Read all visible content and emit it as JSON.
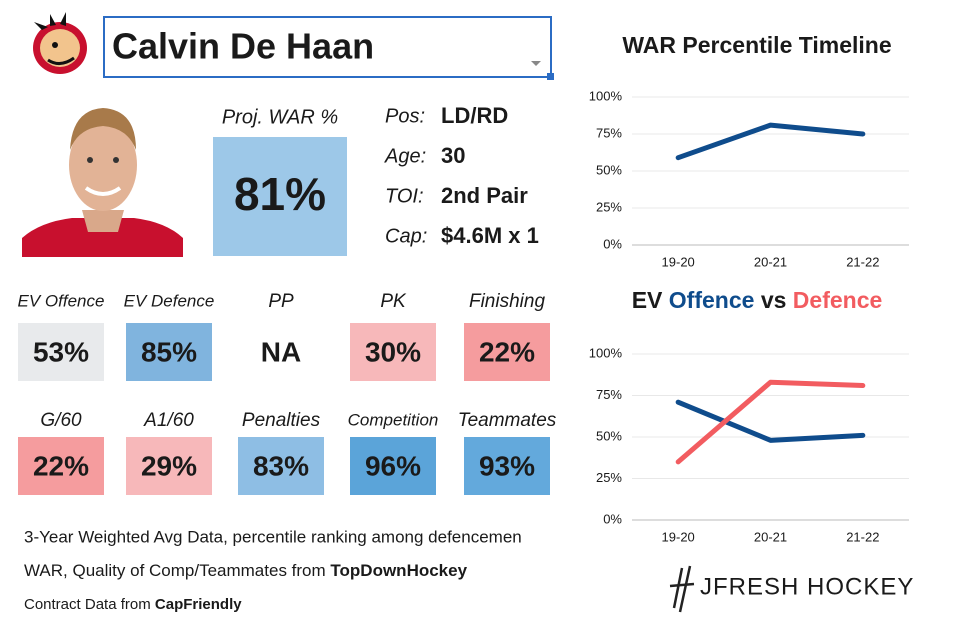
{
  "header": {
    "player_name": "Calvin De Haan"
  },
  "projection": {
    "label": "Proj. WAR %",
    "value": "81%",
    "color": "#9dc8e8"
  },
  "info": [
    {
      "label": "Pos:",
      "value": "LD/RD"
    },
    {
      "label": "Age:",
      "value": "30"
    },
    {
      "label": "TOI:",
      "value": "2nd Pair"
    },
    {
      "label": "Cap:",
      "value": "$4.6M x 1"
    }
  ],
  "metrics": [
    [
      {
        "label": "EV Offence",
        "value": "53%",
        "color": "#e8eaec"
      },
      {
        "label": "EV Defence",
        "value": "85%",
        "color": "#80b4de"
      },
      {
        "label": "PP",
        "value": "NA",
        "color": "#ffffff"
      },
      {
        "label": "PK",
        "value": "30%",
        "color": "#f7b8ba"
      },
      {
        "label": "Finishing",
        "value": "22%",
        "color": "#f59c9e"
      }
    ],
    [
      {
        "label": "G/60",
        "value": "22%",
        "color": "#f59c9e"
      },
      {
        "label": "A1/60",
        "value": "29%",
        "color": "#f7b8ba"
      },
      {
        "label": "Penalties",
        "value": "83%",
        "color": "#8ebee4"
      },
      {
        "label": "Competition",
        "value": "96%",
        "color": "#5ba4d9"
      },
      {
        "label": "Teammates",
        "value": "93%",
        "color": "#63a9dc"
      }
    ]
  ],
  "footer": {
    "note": "3-Year Weighted Avg Data, percentile ranking among defencemen",
    "sources": [
      {
        "text": "WAR, Quality of Comp/Teammates from",
        "source": "TopDownHockey"
      },
      {
        "text": "Contract Data from",
        "source": "CapFriendly"
      }
    ],
    "brand": "JFRESH HOCKEY"
  },
  "chart_data": [
    {
      "type": "line",
      "title": "WAR Percentile Timeline",
      "categories": [
        "19-20",
        "20-21",
        "21-22"
      ],
      "values": [
        59,
        81,
        75
      ],
      "color": "#0f4c8c",
      "ylim": [
        0,
        100
      ],
      "yticks": [
        {
          "value": 0,
          "label": "0%"
        },
        {
          "value": 25,
          "label": "25%"
        },
        {
          "value": 50,
          "label": "50%"
        },
        {
          "value": 75,
          "label": "75%"
        },
        {
          "value": 100,
          "label": "100%"
        }
      ],
      "grid": true
    },
    {
      "type": "line",
      "title_prefix": "EV",
      "title_joiner": "vs",
      "categories": [
        "19-20",
        "20-21",
        "21-22"
      ],
      "series": [
        {
          "name": "Offence",
          "color": "#0f4c8c",
          "values": [
            71,
            48,
            51
          ]
        },
        {
          "name": "Defence",
          "color": "#f25c60",
          "values": [
            35,
            83,
            81
          ]
        }
      ],
      "ylim": [
        0,
        100
      ],
      "yticks": [
        {
          "value": 0,
          "label": "0%"
        },
        {
          "value": 25,
          "label": "25%"
        },
        {
          "value": 50,
          "label": "50%"
        },
        {
          "value": 75,
          "label": "75%"
        },
        {
          "value": 100,
          "label": "100%"
        }
      ],
      "grid": true
    }
  ]
}
